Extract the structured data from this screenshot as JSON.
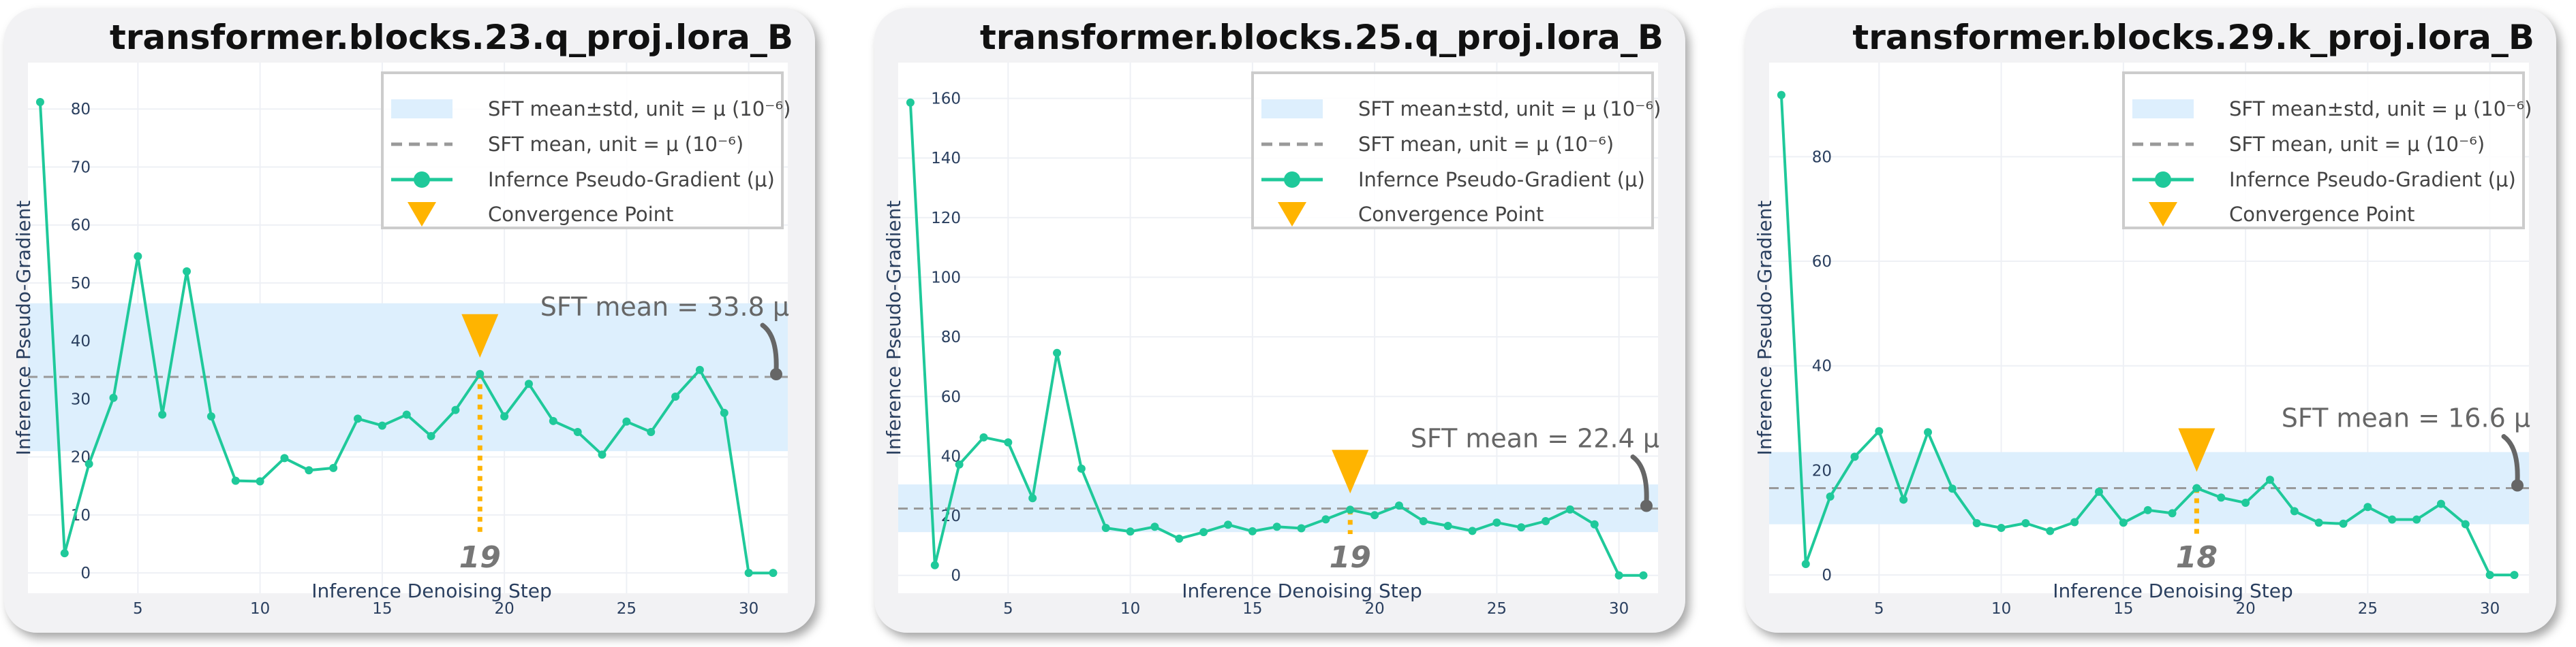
{
  "colors": {
    "line": "#1fc99a",
    "band": "#ddeffd",
    "mean_line": "#999999",
    "marker": "#ffb400",
    "conv_line": "#ffb400",
    "arrow": "#666666"
  },
  "legend": {
    "band": "SFT mean±std, unit = μ (10⁻⁶)",
    "mean": "SFT mean, unit = μ (10⁻⁶)",
    "series": "Infernce Pseudo-Gradient (μ)",
    "marker": "Convergence Point"
  },
  "chart_data": [
    {
      "type": "line",
      "title": "transformer.blocks.23.q_proj.lora_B",
      "xlabel": "Inference Denoising Step",
      "ylabel": "Inference Pseudo-Gradient",
      "x": [
        1,
        2,
        3,
        4,
        5,
        6,
        7,
        8,
        9,
        10,
        11,
        12,
        13,
        14,
        15,
        16,
        17,
        18,
        19,
        20,
        21,
        22,
        23,
        24,
        25,
        26,
        27,
        28,
        29,
        30,
        31
      ],
      "values": [
        81.2,
        3.4,
        18.8,
        30.2,
        54.6,
        27.3,
        52.0,
        27.0,
        15.9,
        15.8,
        19.8,
        17.7,
        18.1,
        26.6,
        25.4,
        27.3,
        23.6,
        28.1,
        34.3,
        27.0,
        32.6,
        26.2,
        24.3,
        20.4,
        26.1,
        24.3,
        30.4,
        35.0,
        27.6,
        0.0,
        0.0
      ],
      "xticks": [
        5,
        10,
        15,
        20,
        25,
        30
      ],
      "yticks": [
        0,
        10,
        20,
        30,
        40,
        50,
        60,
        70,
        80
      ],
      "xlim": [
        0.5,
        31.6
      ],
      "ylim": [
        -3.5,
        88
      ],
      "sft_mean": 33.8,
      "band": [
        21.0,
        46.5
      ],
      "convergence_step": 19,
      "convergence_label": "19",
      "mean_label": "SFT mean = 33.8 μ"
    },
    {
      "type": "line",
      "title": "transformer.blocks.25.q_proj.lora_B",
      "xlabel": "Inference Denoising Step",
      "ylabel": "Inference Pseudo-Gradient",
      "x": [
        1,
        2,
        3,
        4,
        5,
        6,
        7,
        8,
        9,
        10,
        11,
        12,
        13,
        14,
        15,
        16,
        17,
        18,
        19,
        20,
        21,
        22,
        23,
        24,
        25,
        26,
        27,
        28,
        29,
        30,
        31
      ],
      "values": [
        158.6,
        3.4,
        37.2,
        46.3,
        44.6,
        25.9,
        74.6,
        35.8,
        15.9,
        14.7,
        16.3,
        12.3,
        14.5,
        17.0,
        14.8,
        16.3,
        15.8,
        18.8,
        22.0,
        20.2,
        23.4,
        18.2,
        16.6,
        14.9,
        17.7,
        16.1,
        18.2,
        22.1,
        17.1,
        0.0,
        0.0
      ],
      "xticks": [
        5,
        10,
        15,
        20,
        25,
        30
      ],
      "yticks": [
        0,
        20,
        40,
        60,
        80,
        100,
        120,
        140,
        160
      ],
      "xlim": [
        0.5,
        31.6
      ],
      "ylim": [
        -6,
        172
      ],
      "sft_mean": 22.4,
      "band": [
        14.5,
        30.5
      ],
      "convergence_step": 19,
      "convergence_label": "19",
      "mean_label": "SFT mean = 22.4 μ"
    },
    {
      "type": "line",
      "title": "transformer.blocks.29.k_proj.lora_B",
      "xlabel": "Inference Denoising Step",
      "ylabel": "Inference Pseudo-Gradient",
      "x": [
        1,
        2,
        3,
        4,
        5,
        6,
        7,
        8,
        9,
        10,
        11,
        12,
        13,
        14,
        15,
        16,
        17,
        18,
        19,
        20,
        21,
        22,
        23,
        24,
        25,
        26,
        27,
        28,
        29,
        30,
        31
      ],
      "values": [
        91.8,
        2.1,
        15.0,
        22.6,
        27.5,
        14.4,
        27.3,
        16.5,
        9.9,
        9.0,
        9.9,
        8.4,
        10.1,
        15.9,
        10.0,
        12.4,
        11.8,
        16.6,
        14.8,
        13.8,
        18.2,
        12.2,
        10.0,
        9.8,
        13.0,
        10.6,
        10.6,
        13.6,
        9.7,
        0.0,
        0.0
      ],
      "xticks": [
        5,
        10,
        15,
        20,
        25,
        30
      ],
      "yticks": [
        0,
        20,
        40,
        60,
        80
      ],
      "xlim": [
        0.5,
        31.6
      ],
      "ylim": [
        -3.5,
        98
      ],
      "sft_mean": 16.6,
      "band": [
        9.7,
        23.5
      ],
      "convergence_step": 18,
      "convergence_label": "18",
      "mean_label": "SFT mean = 16.6 μ"
    }
  ]
}
